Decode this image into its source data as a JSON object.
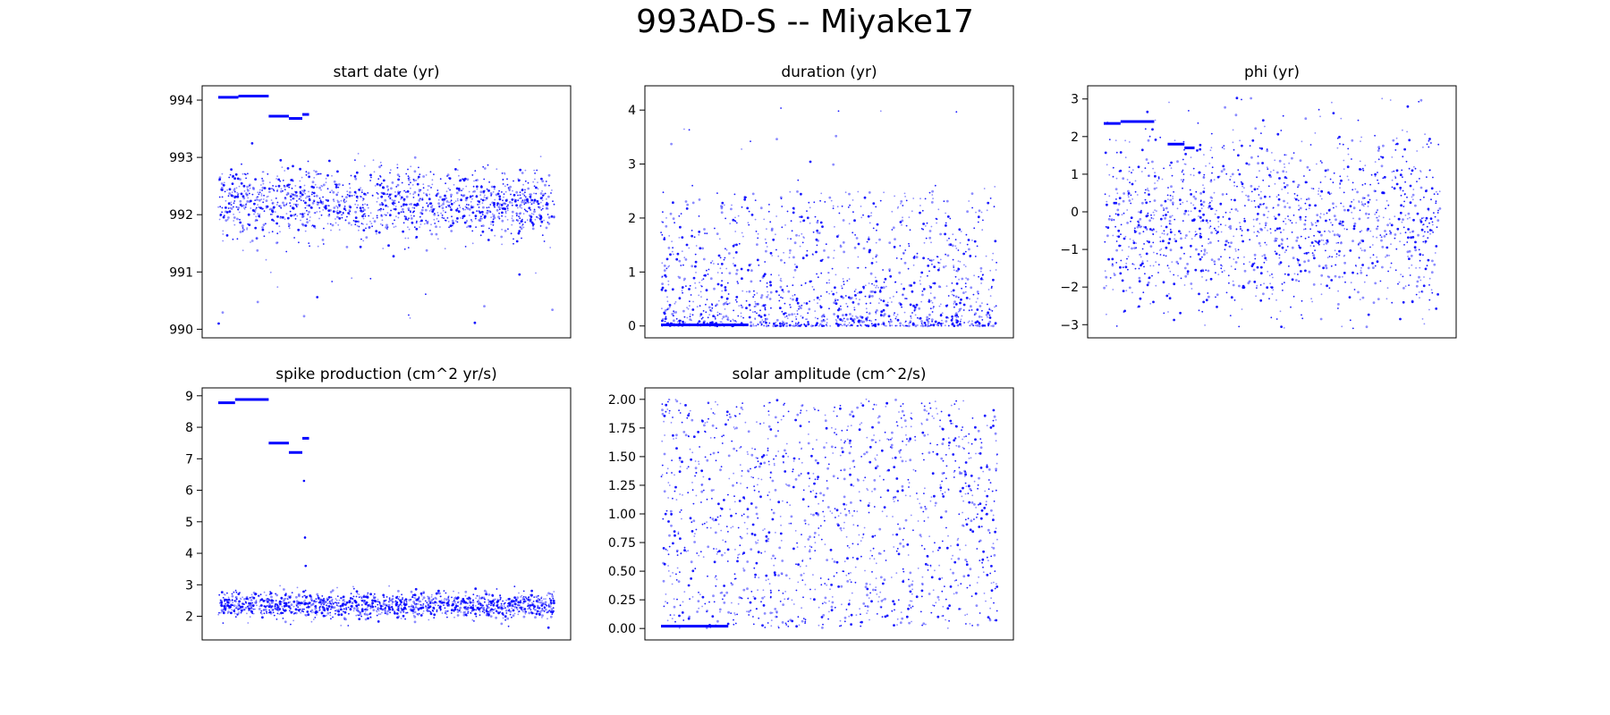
{
  "figure": {
    "title": "993AD-S -- Miyake17",
    "background": "#ffffff",
    "marker_color": "#0000ff"
  },
  "chart_data": [
    {
      "type": "scatter",
      "title": "start date (yr)",
      "xlabel": "",
      "ylabel": "",
      "ylim": [
        989.85,
        994.25
      ],
      "yticks": [
        990,
        991,
        992,
        993,
        994
      ],
      "ytick_labels": [
        "990",
        "991",
        "992",
        "993",
        "994"
      ],
      "xticks_visible": false,
      "grid": false,
      "series": [
        {
          "style": "dense noisy band",
          "x_range": [
            0,
            1
          ],
          "center": 992.2,
          "spread": 0.3,
          "outlier_min": 990.0,
          "outlier_max": 993.0
        }
      ],
      "segments": [
        {
          "x": [
            0.0,
            0.06
          ],
          "y": 994.05
        },
        {
          "x": [
            0.06,
            0.15
          ],
          "y": 994.07
        },
        {
          "x": [
            0.15,
            0.21
          ],
          "y": 993.72
        },
        {
          "x": [
            0.21,
            0.25
          ],
          "y": 993.68
        },
        {
          "x": [
            0.25,
            0.27
          ],
          "y": 993.75
        }
      ]
    },
    {
      "type": "scatter",
      "title": "duration (yr)",
      "xlabel": "",
      "ylabel": "",
      "ylim": [
        -0.22,
        4.45
      ],
      "yticks": [
        0,
        1,
        2,
        3,
        4
      ],
      "ytick_labels": [
        "0",
        "1",
        "2",
        "3",
        "4"
      ],
      "xticks_visible": false,
      "grid": false,
      "series": [
        {
          "style": "skewed toward zero",
          "x_range": [
            0,
            1
          ],
          "min": 0.0,
          "typical_max": 2.5,
          "outlier_max": 4.2
        }
      ],
      "segments": [
        {
          "x": [
            0.0,
            0.26
          ],
          "y": 0.02
        }
      ]
    },
    {
      "type": "scatter",
      "title": "phi (yr)",
      "xlabel": "",
      "ylabel": "",
      "ylim": [
        -3.35,
        3.35
      ],
      "yticks": [
        -3,
        -2,
        -1,
        0,
        1,
        2,
        3
      ],
      "ytick_labels": [
        "−3",
        "−2",
        "−1",
        "0",
        "1",
        "2",
        "3"
      ],
      "xticks_visible": false,
      "grid": false,
      "series": [
        {
          "style": "spread across range",
          "x_range": [
            0,
            1
          ],
          "center": -0.3,
          "min": -3.14,
          "max": 3.14
        }
      ],
      "segments": [
        {
          "x": [
            0.0,
            0.05
          ],
          "y": 2.35
        },
        {
          "x": [
            0.05,
            0.15
          ],
          "y": 2.4
        },
        {
          "x": [
            0.19,
            0.24
          ],
          "y": 1.8
        },
        {
          "x": [
            0.24,
            0.27
          ],
          "y": 1.7
        }
      ]
    },
    {
      "type": "scatter",
      "title": "spike production (cm^2 yr/s)",
      "xlabel": "",
      "ylabel": "",
      "ylim": [
        1.25,
        9.25
      ],
      "yticks": [
        2,
        3,
        4,
        5,
        6,
        7,
        8,
        9
      ],
      "ytick_labels": [
        "2",
        "3",
        "4",
        "5",
        "6",
        "7",
        "8",
        "9"
      ],
      "xticks_visible": false,
      "grid": false,
      "series": [
        {
          "style": "dense noisy band",
          "x_range": [
            0,
            1
          ],
          "center": 2.35,
          "spread": 0.2,
          "outlier_min": 1.6,
          "outlier_max": 3.0
        }
      ],
      "outliers": [
        {
          "x": 0.255,
          "y": 6.3
        },
        {
          "x": 0.258,
          "y": 4.5
        },
        {
          "x": 0.26,
          "y": 3.6
        }
      ],
      "segments": [
        {
          "x": [
            0.0,
            0.05
          ],
          "y": 8.78
        },
        {
          "x": [
            0.05,
            0.15
          ],
          "y": 8.88
        },
        {
          "x": [
            0.15,
            0.21
          ],
          "y": 7.5
        },
        {
          "x": [
            0.21,
            0.25
          ],
          "y": 7.2
        },
        {
          "x": [
            0.25,
            0.27
          ],
          "y": 7.65
        }
      ]
    },
    {
      "type": "scatter",
      "title": "solar amplitude (cm^2/s)",
      "xlabel": "",
      "ylabel": "",
      "ylim": [
        -0.1,
        2.1
      ],
      "yticks": [
        0,
        0.25,
        0.5,
        0.75,
        1.0,
        1.25,
        1.5,
        1.75,
        2.0
      ],
      "ytick_labels": [
        "0.00",
        "0.25",
        "0.50",
        "0.75",
        "1.00",
        "1.25",
        "1.50",
        "1.75",
        "2.00"
      ],
      "xticks_visible": false,
      "grid": false,
      "series": [
        {
          "style": "uniform",
          "x_range": [
            0,
            1
          ],
          "min": 0.0,
          "max": 2.0
        }
      ],
      "segments": [
        {
          "x": [
            0.0,
            0.2
          ],
          "y": 0.02
        }
      ]
    }
  ]
}
